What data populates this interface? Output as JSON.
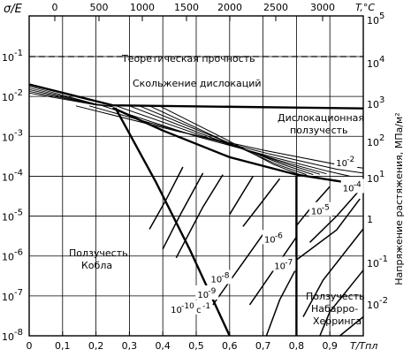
{
  "chart_data": {
    "type": "line",
    "title": "",
    "x_bottom": {
      "label": "T/Tпл",
      "ticks": [
        "0",
        "0,1",
        "0,2",
        "0,3",
        "0,4",
        "0,5",
        "0,6",
        "0,7",
        "0,8",
        "0,9"
      ],
      "values": [
        0,
        0.1,
        0.2,
        0.3,
        0.4,
        0.5,
        0.6,
        0.7,
        0.8,
        0.9
      ],
      "range": [
        0,
        1.0
      ]
    },
    "x_top": {
      "label": "T,°C",
      "ticks": [
        "0",
        "500",
        "1000",
        "1500",
        "2000",
        "2500",
        "3000"
      ]
    },
    "y_left": {
      "label": "σ/E",
      "scale": "log",
      "range": [
        1e-08,
        1
      ],
      "tick_exponents": [
        "-1",
        "-2",
        "-3",
        "-4",
        "-5",
        "-6",
        "-7",
        "-8"
      ]
    },
    "y_right": {
      "label": "Напряжение растяжения, МПа/м²",
      "scale": "log",
      "ticks": [
        {
          "text": "10",
          "exp": "5"
        },
        {
          "text": "10",
          "exp": "4"
        },
        {
          "text": "10",
          "exp": "3"
        },
        {
          "text": "10",
          "exp": "2"
        },
        {
          "text": "10",
          "exp": "1"
        },
        {
          "text": "1",
          "exp": ""
        },
        {
          "text": "10",
          "exp": "-1"
        },
        {
          "text": "10",
          "exp": "-2"
        }
      ]
    },
    "grid": true,
    "regions": {
      "theoretical": "Теоретическая прочность",
      "dislocation_glide": "Скольжение дислокаций",
      "dislocation_creep_1": "Дислокационная",
      "dislocation_creep_2": "ползучесть",
      "coble_1": "Ползучесть",
      "coble_2": "Кобла",
      "nabarro_1": "Ползучесть",
      "nabarro_2": "Набарро-",
      "nabarro_3": "Херринга"
    },
    "theoretical_strength": 0.1,
    "glide_boundary": [
      {
        "x": 0,
        "y": 0.02
      },
      {
        "x": 0.25,
        "y": 0.006
      },
      {
        "x": 1.0,
        "y": 0.005
      }
    ],
    "creep_boundary": [
      {
        "x": 0.25,
        "y": 0.0052
      },
      {
        "x": 0.4,
        "y": 0.0014
      },
      {
        "x": 0.6,
        "y": 0.0003
      },
      {
        "x": 0.8,
        "y": 0.00011
      },
      {
        "x": 1.0,
        "y": 6e-05
      }
    ],
    "diffusion_boundary": [
      {
        "x": 0.258,
        "y": 0.0052
      },
      {
        "x": 0.38,
        "y": 7e-05
      },
      {
        "x": 0.48,
        "y": 1.5e-06
      },
      {
        "x": 0.6,
        "y": 1e-08
      }
    ],
    "coble_nh_boundary": [
      {
        "x": 0.8,
        "y": 0.0001
      },
      {
        "x": 0.8,
        "y": 1e-08
      }
    ],
    "strain_rate_labels": [
      {
        "base": "10",
        "exp": "-2",
        "x": 0.945,
        "y": 0.00018
      },
      {
        "base": "10",
        "exp": "-4",
        "x": 0.965,
        "y": 4.2e-05
      },
      {
        "base": "10",
        "exp": "-5",
        "x": 0.87,
        "y": 1.1e-05
      },
      {
        "base": "10",
        "exp": "-6",
        "x": 0.73,
        "y": 2.2e-06
      },
      {
        "base": "10",
        "exp": "-7",
        "x": 0.76,
        "y": 4.7e-07
      },
      {
        "base": "10",
        "exp": "-8",
        "x": 0.57,
        "y": 2.2e-07
      },
      {
        "base": "10",
        "exp": "-9",
        "x": 0.53,
        "y": 9e-08
      },
      {
        "base": "10",
        "exp": "-10",
        "unit": "c",
        "unit_exp": "-1",
        "x": 0.45,
        "y": 3.8e-08
      }
    ],
    "strain_rate_curves": [
      [
        {
          "x": 0.14,
          "y": 0.0058
        },
        {
          "x": 0.45,
          "y": 0.0013
        },
        {
          "x": 0.7,
          "y": 0.00045
        },
        {
          "x": 0.93,
          "y": 0.00019
        },
        {
          "x": 1.0,
          "y": 0.00016
        }
      ],
      [
        {
          "x": 0.18,
          "y": 0.0058
        },
        {
          "x": 0.48,
          "y": 0.00115
        },
        {
          "x": 0.72,
          "y": 0.00036
        },
        {
          "x": 0.92,
          "y": 0.00015
        },
        {
          "x": 1.0,
          "y": 0.00012
        }
      ],
      [
        {
          "x": 0.22,
          "y": 0.0058
        },
        {
          "x": 0.5,
          "y": 0.001
        },
        {
          "x": 0.73,
          "y": 0.0003
        },
        {
          "x": 0.9,
          "y": 0.00013
        },
        {
          "x": 0.96,
          "y": 0.0001
        }
      ],
      [
        {
          "x": 0.26,
          "y": 0.0058
        },
        {
          "x": 0.53,
          "y": 0.00095
        },
        {
          "x": 0.74,
          "y": 0.00026
        },
        {
          "x": 0.89,
          "y": 0.000115
        }
      ],
      [
        {
          "x": 0.3,
          "y": 0.0058
        },
        {
          "x": 0.55,
          "y": 0.0009
        },
        {
          "x": 0.75,
          "y": 0.00023
        },
        {
          "x": 0.87,
          "y": 0.000112
        }
      ],
      [
        {
          "x": 0.33,
          "y": 0.0058
        },
        {
          "x": 0.57,
          "y": 0.00085
        },
        {
          "x": 0.75,
          "y": 0.00021
        },
        {
          "x": 0.85,
          "y": 0.00011
        }
      ],
      [
        {
          "x": 0.36,
          "y": 0.0058
        },
        {
          "x": 0.58,
          "y": 0.0008
        },
        {
          "x": 0.74,
          "y": 0.0002
        },
        {
          "x": 0.83,
          "y": 0.00011
        }
      ],
      [
        {
          "x": 0.39,
          "y": 0.0058
        },
        {
          "x": 0.6,
          "y": 0.00075
        },
        {
          "x": 0.73,
          "y": 0.0002
        },
        {
          "x": 0.81,
          "y": 0.00011
        }
      ]
    ],
    "diffusion_lines": [
      [
        {
          "x": 0.99,
          "y": 4.6e-05
        },
        {
          "x": 0.92,
          "y": 1e-05
        },
        {
          "x": 0.84,
          "y": 2.2e-06
        }
      ],
      [
        {
          "x": 0.99,
          "y": 2.7e-05
        },
        {
          "x": 0.92,
          "y": 4.5e-06
        },
        {
          "x": 0.8,
          "y": 8e-07
        }
      ],
      [
        {
          "x": 0.9,
          "y": 5.5e-05
        },
        {
          "x": 0.84,
          "y": 1.5e-05
        },
        {
          "x": 0.8,
          "y": 5.8e-06
        }
      ],
      [
        {
          "x": 0.75,
          "y": 8.7e-05
        },
        {
          "x": 0.7,
          "y": 2.45e-05
        },
        {
          "x": 0.64,
          "y": 5.5e-06
        }
      ],
      [
        {
          "x": 0.67,
          "y": 0.0001
        },
        {
          "x": 0.64,
          "y": 3.9e-05
        },
        {
          "x": 0.6,
          "y": 1.1e-05
        }
      ],
      [
        {
          "x": 0.58,
          "y": 0.00011
        },
        {
          "x": 0.52,
          "y": 1.7e-05
        },
        {
          "x": 0.44,
          "y": 9e-07
        }
      ],
      [
        {
          "x": 0.52,
          "y": 0.00012
        },
        {
          "x": 0.45,
          "y": 1e-05
        },
        {
          "x": 0.4,
          "y": 1.5e-06
        }
      ],
      [
        {
          "x": 0.46,
          "y": 0.00017
        },
        {
          "x": 0.41,
          "y": 2.6e-05
        },
        {
          "x": 0.36,
          "y": 4.7e-06
        }
      ],
      [
        {
          "x": 0.7,
          "y": 3.5e-06
        },
        {
          "x": 0.62,
          "y": 4e-07
        },
        {
          "x": 0.55,
          "y": 6e-08
        }
      ],
      [
        {
          "x": 0.8,
          "y": 3e-06
        },
        {
          "x": 0.72,
          "y": 3.2e-07
        },
        {
          "x": 0.66,
          "y": 6e-08
        }
      ],
      [
        {
          "x": 0.8,
          "y": 5e-07
        },
        {
          "x": 0.75,
          "y": 8e-08
        },
        {
          "x": 0.71,
          "y": 1e-08
        }
      ],
      [
        {
          "x": 1.0,
          "y": 3e-08
        },
        {
          "x": 0.93,
          "y": 1e-08
        }
      ],
      [
        {
          "x": 1.0,
          "y": 4.4e-07
        },
        {
          "x": 0.9,
          "y": 4e-08
        },
        {
          "x": 0.87,
          "y": 1e-08
        }
      ],
      [
        {
          "x": 1.0,
          "y": 4.8e-06
        },
        {
          "x": 0.88,
          "y": 2.5e-07
        },
        {
          "x": 0.82,
          "y": 3e-08
        }
      ]
    ]
  }
}
